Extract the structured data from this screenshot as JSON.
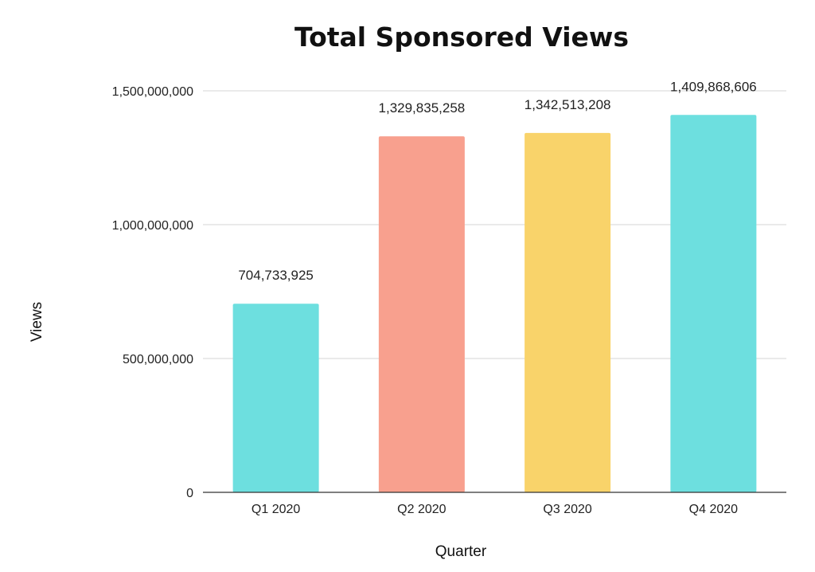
{
  "chart_data": {
    "type": "bar",
    "title": "Total Sponsored Views",
    "xlabel": "Quarter",
    "ylabel": "Views",
    "categories": [
      "Q1 2020",
      "Q2 2020",
      "Q3 2020",
      "Q4 2020"
    ],
    "values": [
      704733925,
      1329835258,
      1342513208,
      1409868606
    ],
    "value_labels": [
      "704,733,925",
      "1,329,835,258",
      "1,342,513,208",
      "1,409,868,606"
    ],
    "bar_colors": [
      "#6ddfdf",
      "#f8a08e",
      "#f9d36a",
      "#6ddfdf"
    ],
    "ylim": [
      0,
      1500000000
    ],
    "yticks": [
      0,
      500000000,
      1000000000,
      1500000000
    ],
    "ytick_labels": [
      "0",
      "500,000,000",
      "1,000,000,000",
      "1,500,000,000"
    ],
    "grid": true,
    "legend": "none"
  }
}
